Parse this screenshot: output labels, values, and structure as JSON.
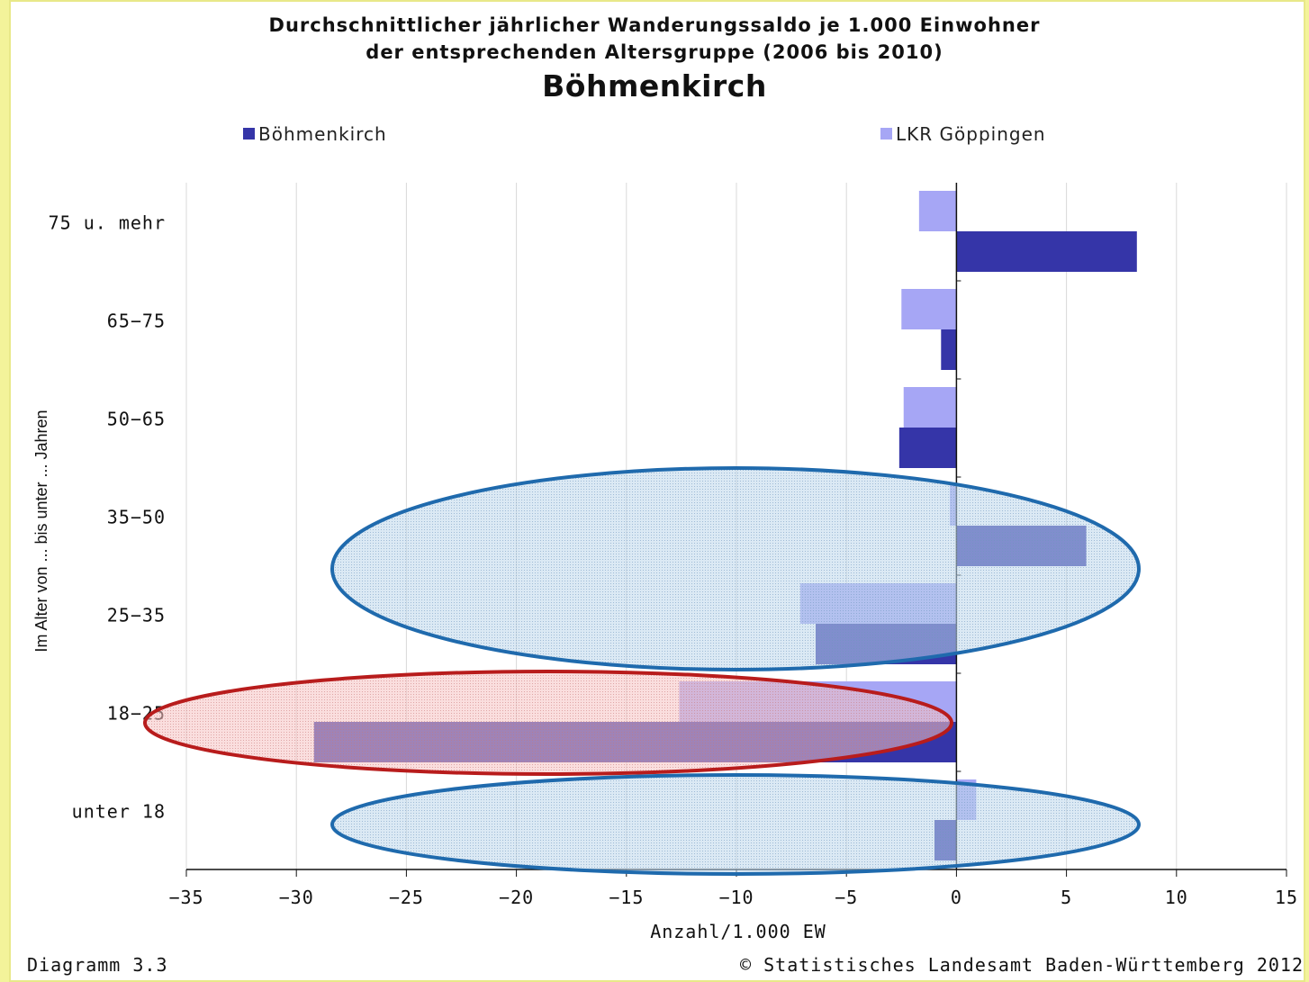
{
  "title_line1": "Durchschnittlicher jährlicher Wanderungssaldo je 1.000 Einwohner",
  "title_line2": "der entsprechenden Altersgruppe (2006 bis 2010)",
  "title_line3": "Böhmenkirch",
  "footer_left": "Diagramm 3.3",
  "footer_right": "© Statistisches Landesamt Baden-Württemberg 2012",
  "colors": {
    "boehmenkirch": "#3535a8",
    "lkr": "#a6a6f5",
    "blue_ellipse": "#1f6aad",
    "red_ellipse": "#b81c1c"
  },
  "chart_data": {
    "type": "bar",
    "orientation": "horizontal",
    "categories": [
      "75 u. mehr",
      "65-75",
      "50-65",
      "35-50",
      "25-35",
      "18-25",
      "unter 18"
    ],
    "series": [
      {
        "name": "Böhmenkirch",
        "values": [
          8.2,
          -0.7,
          -2.6,
          5.9,
          -6.4,
          -29.2,
          -1.0
        ]
      },
      {
        "name": "LKR Göppingen",
        "values": [
          -1.7,
          -2.5,
          -2.4,
          -0.3,
          -7.1,
          -12.6,
          0.9
        ]
      }
    ],
    "xlabel": "Anzahl/1.000 EW",
    "ylabel": "Im Alter von ... bis unter ... Jahren",
    "xlim": [
      -35,
      15
    ],
    "x_ticks": [
      -35,
      -30,
      -25,
      -20,
      -15,
      -10,
      -5,
      0,
      5,
      10,
      15
    ],
    "x_tick_labels": [
      "−35",
      "−30",
      "−25",
      "−20",
      "−15",
      "−10",
      "−5",
      "0",
      "5",
      "10",
      "15"
    ],
    "grid": "vertical",
    "legend": "top",
    "highlights": [
      {
        "shape": "ellipse",
        "color": "blue",
        "categories": [
          "35-50",
          "25-35"
        ]
      },
      {
        "shape": "ellipse",
        "color": "red",
        "categories": [
          "18-25"
        ]
      },
      {
        "shape": "ellipse",
        "color": "blue",
        "categories": [
          "unter 18"
        ]
      }
    ]
  }
}
